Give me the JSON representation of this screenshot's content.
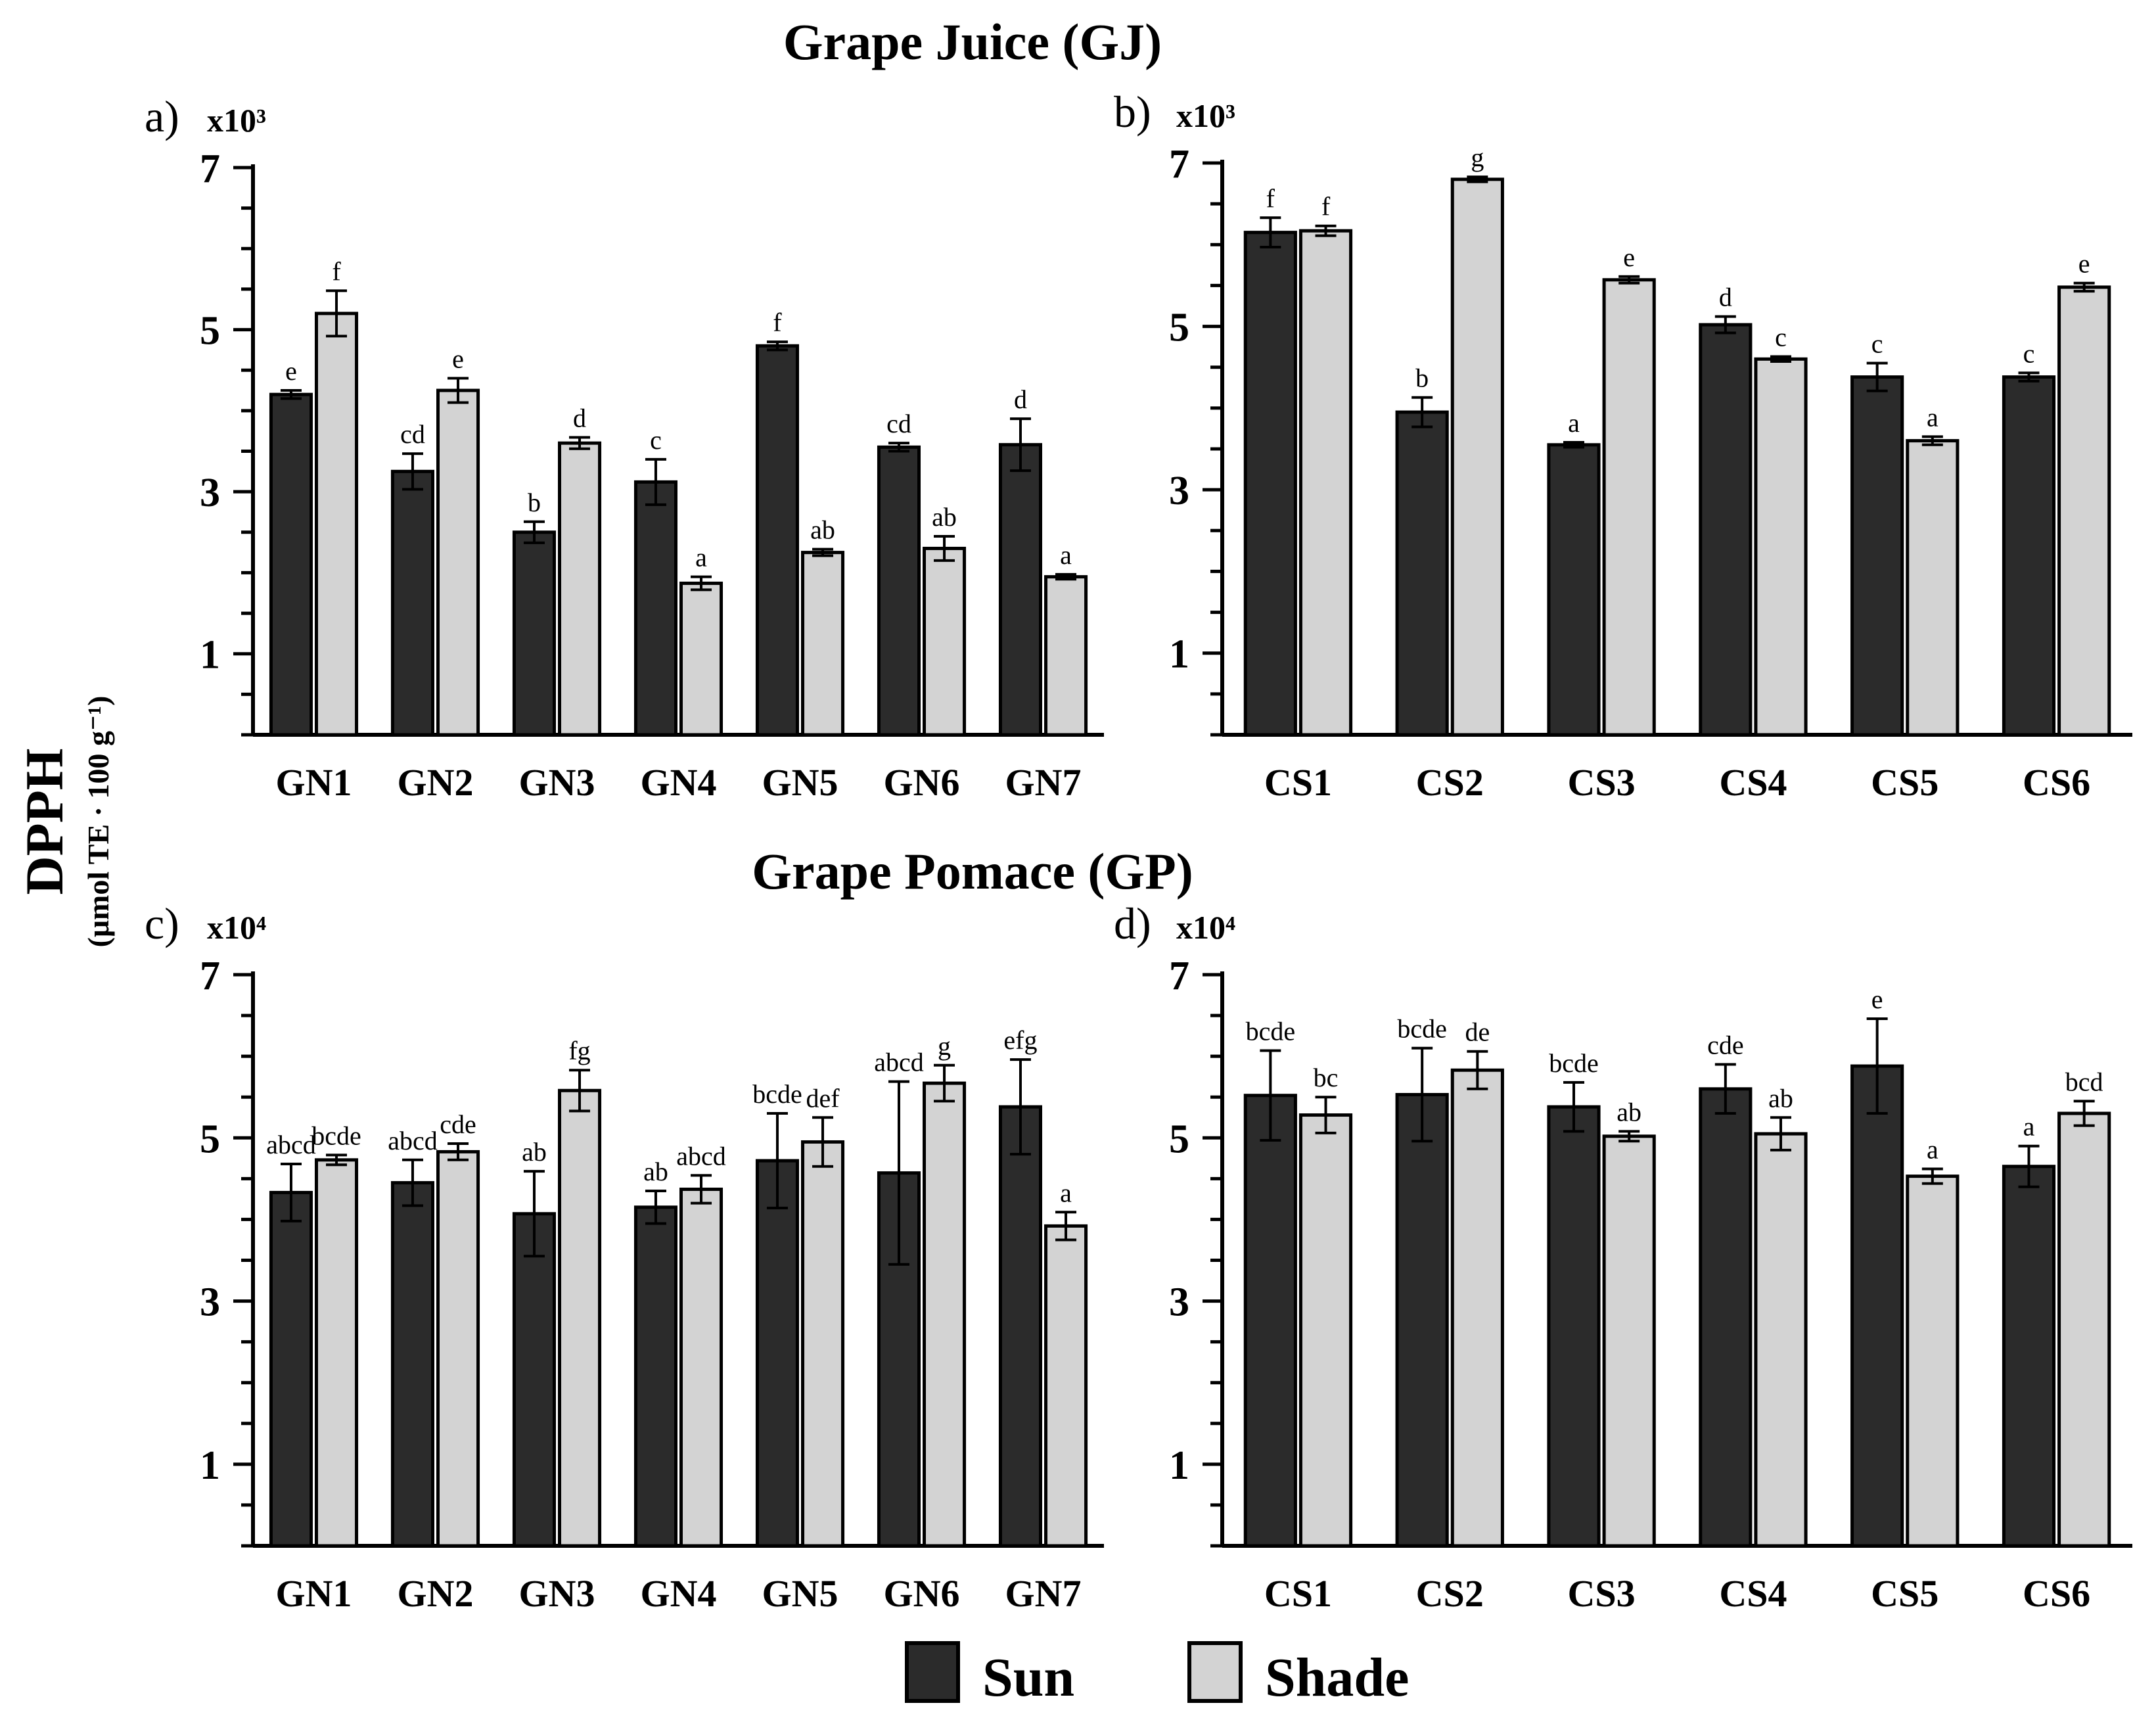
{
  "figure": {
    "sections": [
      {
        "title": "Grape Juice (GJ)"
      },
      {
        "title": "Grape Pomace (GP)"
      }
    ],
    "ylabel": "DPPH",
    "ylabel_unit": "(μmol TE · 100 g⁻¹)",
    "legend": [
      {
        "name": "Sun",
        "color": "#2b2b2b"
      },
      {
        "name": "Shade",
        "color": "#d3d3d3"
      }
    ]
  },
  "chart_data": [
    {
      "panel": "a)",
      "type": "bar",
      "scale": "x10³",
      "ylim": [
        0,
        7
      ],
      "yticks": [
        1,
        3,
        5,
        7
      ],
      "categories": [
        "GN1",
        "GN2",
        "GN3",
        "GN4",
        "GN5",
        "GN6",
        "GN7"
      ],
      "series": [
        {
          "name": "Sun",
          "values": [
            4.2,
            3.25,
            2.5,
            3.12,
            4.8,
            3.55,
            3.58
          ],
          "errors": [
            0.05,
            0.22,
            0.13,
            0.28,
            0.05,
            0.05,
            0.32
          ],
          "letters": [
            "e",
            "cd",
            "b",
            "c",
            "f",
            "cd",
            "d"
          ]
        },
        {
          "name": "Shade",
          "values": [
            5.2,
            4.25,
            3.6,
            1.87,
            2.25,
            2.3,
            1.95
          ],
          "errors": [
            0.28,
            0.15,
            0.07,
            0.08,
            0.04,
            0.15,
            0.03
          ],
          "letters": [
            "f",
            "e",
            "d",
            "a",
            "ab",
            "ab",
            "a"
          ]
        }
      ]
    },
    {
      "panel": "b)",
      "type": "bar",
      "scale": "x10³",
      "ylim": [
        0,
        7
      ],
      "yticks": [
        1,
        3,
        5,
        7
      ],
      "categories": [
        "CS1",
        "CS2",
        "CS3",
        "CS4",
        "CS5",
        "CS6"
      ],
      "series": [
        {
          "name": "Sun",
          "values": [
            6.15,
            3.95,
            3.55,
            5.02,
            4.38,
            4.38
          ],
          "errors": [
            0.18,
            0.18,
            0.03,
            0.1,
            0.17,
            0.05
          ],
          "letters": [
            "f",
            "b",
            "a",
            "d",
            "c",
            "c"
          ]
        },
        {
          "name": "Shade",
          "values": [
            6.17,
            6.8,
            5.57,
            4.6,
            3.6,
            5.48
          ],
          "errors": [
            0.06,
            0.03,
            0.04,
            0.03,
            0.05,
            0.05
          ],
          "letters": [
            "f",
            "g",
            "e",
            "c",
            "a",
            "e"
          ]
        }
      ]
    },
    {
      "panel": "c)",
      "type": "bar",
      "scale": "x10⁴",
      "ylim": [
        0,
        7
      ],
      "yticks": [
        1,
        3,
        5,
        7
      ],
      "categories": [
        "GN1",
        "GN2",
        "GN3",
        "GN4",
        "GN5",
        "GN6",
        "GN7"
      ],
      "series": [
        {
          "name": "Sun",
          "values": [
            4.33,
            4.45,
            4.07,
            4.15,
            4.72,
            4.57,
            5.38
          ],
          "errors": [
            0.35,
            0.28,
            0.52,
            0.2,
            0.58,
            1.12,
            0.58
          ],
          "letters": [
            "abcd",
            "abcd",
            "ab",
            "ab",
            "bcde",
            "abcd",
            "efg"
          ]
        },
        {
          "name": "Shade",
          "values": [
            4.73,
            4.83,
            5.58,
            4.37,
            4.95,
            5.67,
            3.92
          ],
          "errors": [
            0.06,
            0.1,
            0.25,
            0.17,
            0.3,
            0.22,
            0.17
          ],
          "letters": [
            "bcde",
            "cde",
            "fg",
            "abcd",
            "def",
            "g",
            "a"
          ]
        }
      ]
    },
    {
      "panel": "d)",
      "type": "bar",
      "scale": "x10⁴",
      "ylim": [
        0,
        7
      ],
      "yticks": [
        1,
        3,
        5,
        7
      ],
      "categories": [
        "CS1",
        "CS2",
        "CS3",
        "CS4",
        "CS5",
        "CS6"
      ],
      "series": [
        {
          "name": "Sun",
          "values": [
            5.52,
            5.53,
            5.38,
            5.6,
            5.88,
            4.65
          ],
          "errors": [
            0.55,
            0.57,
            0.3,
            0.3,
            0.58,
            0.25
          ],
          "letters": [
            "bcde",
            "bcde",
            "bcde",
            "cde",
            "e",
            "a"
          ]
        },
        {
          "name": "Shade",
          "values": [
            5.28,
            5.83,
            5.02,
            5.05,
            4.53,
            5.3
          ],
          "errors": [
            0.22,
            0.23,
            0.06,
            0.2,
            0.09,
            0.15
          ],
          "letters": [
            "bc",
            "de",
            "ab",
            "ab",
            "a",
            "bcd"
          ]
        }
      ]
    }
  ]
}
